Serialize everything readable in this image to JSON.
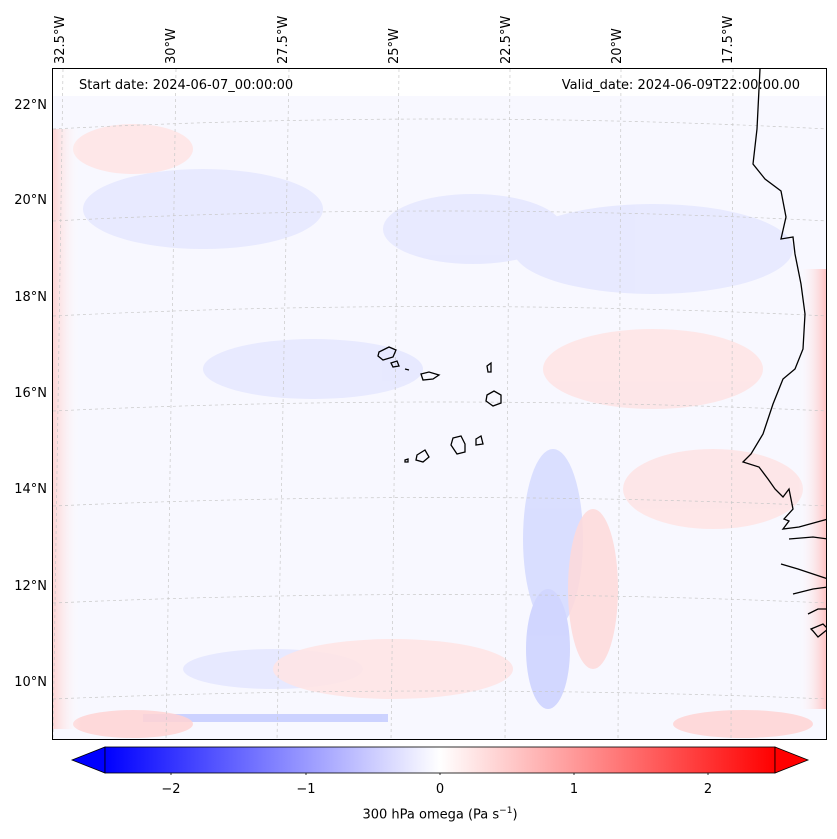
{
  "header": {
    "start_date": "Start date: 2024-06-07_00:00:00",
    "valid_date": "Valid_date: 2024-06-09T22:00:00.00"
  },
  "axes": {
    "lat_labels": [
      "22°N",
      "20°N",
      "18°N",
      "16°N",
      "14°N",
      "12°N",
      "10°N"
    ],
    "lon_labels": [
      "32.5°W",
      "30°W",
      "27.5°W",
      "25°W",
      "22.5°W",
      "20°W",
      "17.5°W"
    ]
  },
  "colorbar": {
    "ticks": [
      "−2",
      "−1",
      "0",
      "1",
      "2"
    ],
    "label_prefix": "300 hPa omega (Pa s",
    "label_exponent": "−1",
    "label_suffix": ")",
    "range": [
      -2.5,
      2.5
    ],
    "neg_color": "#0000ff",
    "pos_color": "#ff0000",
    "mid_color": "#ffffff"
  },
  "map": {
    "variable": "300 hPa omega",
    "region": "Cape Verde / West Africa coast",
    "coast_color": "#000000",
    "grid_color": "#b0b0b0"
  }
}
